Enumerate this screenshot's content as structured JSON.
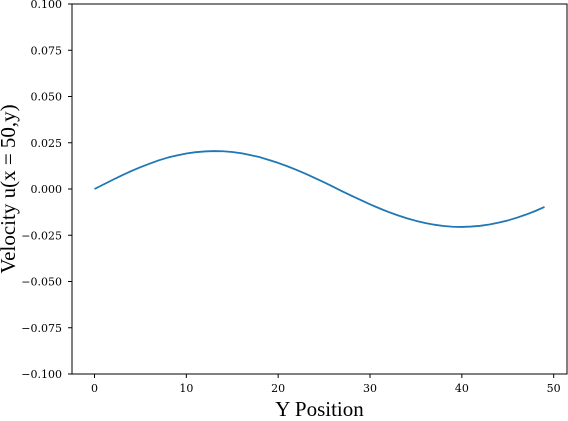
{
  "chart_data": {
    "type": "line",
    "title": "",
    "xlabel": "Y Position",
    "ylabel": "Velocity u(x = 50,y)",
    "xlim": [
      -2.45,
      51.45
    ],
    "ylim": [
      -0.1,
      0.1
    ],
    "xticks": [
      0,
      10,
      20,
      30,
      40,
      50
    ],
    "xtick_labels": [
      "0",
      "10",
      "20",
      "30",
      "40",
      "50"
    ],
    "yticks": [
      -0.1,
      -0.075,
      -0.05,
      -0.025,
      0.0,
      0.025,
      0.05,
      0.075,
      0.1
    ],
    "ytick_labels": [
      "−0.100",
      "−0.075",
      "−0.050",
      "−0.025",
      "0.000",
      "0.025",
      "0.050",
      "0.075",
      "0.100"
    ],
    "grid": false,
    "legend": "none",
    "series": [
      {
        "color": "#1f77b4",
        "x": [
          0,
          1,
          2,
          3,
          4,
          5,
          6,
          7,
          8,
          9,
          10,
          11,
          12,
          13,
          14,
          15,
          16,
          17,
          18,
          19,
          20,
          21,
          22,
          23,
          24,
          25,
          26,
          27,
          28,
          29,
          30,
          31,
          32,
          33,
          34,
          35,
          36,
          37,
          38,
          39,
          40,
          41,
          42,
          43,
          44,
          45,
          46,
          47,
          48,
          49
        ],
        "y": [
          0.0,
          0.0025,
          0.005,
          0.0074,
          0.0097,
          0.0118,
          0.0137,
          0.0155,
          0.017,
          0.0182,
          0.0192,
          0.0199,
          0.0203,
          0.0205,
          0.0204,
          0.02,
          0.0193,
          0.0183,
          0.0172,
          0.0157,
          0.0141,
          0.0123,
          0.0103,
          0.0082,
          0.0059,
          0.0036,
          0.0012,
          -0.0013,
          -0.0037,
          -0.006,
          -0.0083,
          -0.0104,
          -0.0124,
          -0.0142,
          -0.0158,
          -0.0172,
          -0.0184,
          -0.0193,
          -0.02,
          -0.0204,
          -0.0205,
          -0.0203,
          -0.0199,
          -0.0192,
          -0.0182,
          -0.017,
          -0.0155,
          -0.0138,
          -0.0119,
          -0.0097
        ]
      }
    ]
  }
}
